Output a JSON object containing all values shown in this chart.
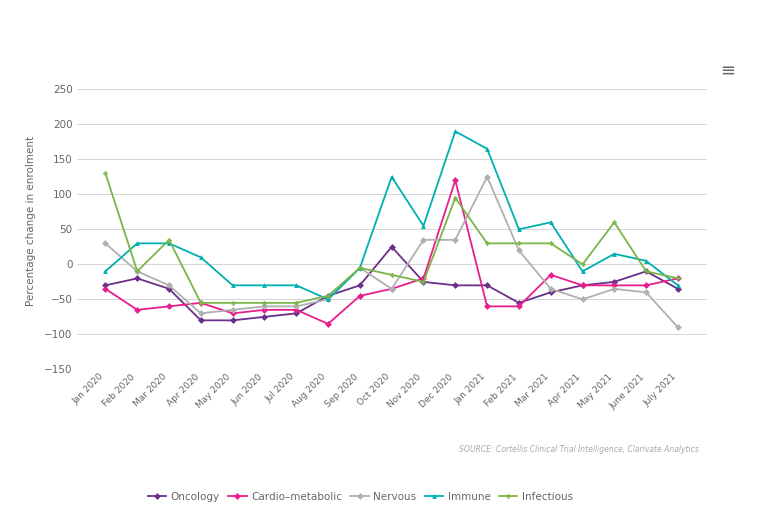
{
  "months": [
    "Jan 2020",
    "Feb 2020",
    "Mar 2020",
    "Apr 2020",
    "May 2020",
    "Jun 2020",
    "Jul 2020",
    "Aug 2020",
    "Sep 2020",
    "Oct 2020",
    "Nov 2020",
    "Dec 2020",
    "Jan 2021",
    "Feb 2021",
    "Mar 2021",
    "Apr 2021",
    "May 2021",
    "June 2021",
    "July 2021"
  ],
  "oncology": [
    -30,
    -20,
    -35,
    -80,
    -80,
    -75,
    -70,
    -45,
    -30,
    25,
    -25,
    -30,
    -30,
    -55,
    -40,
    -30,
    -25,
    -10,
    -35
  ],
  "cardio": [
    -35,
    -65,
    -60,
    -55,
    -70,
    -65,
    -65,
    -85,
    -45,
    -35,
    -20,
    120,
    -60,
    -60,
    -15,
    -30,
    -30,
    -30,
    -20
  ],
  "nervous": [
    30,
    -10,
    -30,
    -70,
    -65,
    -60,
    -60,
    -50,
    -5,
    -35,
    35,
    35,
    125,
    20,
    -35,
    -50,
    -35,
    -40,
    -90
  ],
  "immune": [
    -10,
    30,
    30,
    10,
    -30,
    -30,
    -30,
    -50,
    -5,
    125,
    55,
    190,
    165,
    50,
    60,
    -10,
    15,
    5,
    -30
  ],
  "infectious": [
    130,
    -10,
    35,
    -55,
    -55,
    -55,
    -55,
    -45,
    -5,
    -15,
    -25,
    95,
    30,
    30,
    30,
    0,
    60,
    -10,
    -20
  ],
  "colors": {
    "oncology": "#6a2f8a",
    "cardio": "#e91e8c",
    "nervous": "#b0b0b0",
    "immune": "#00b0b0",
    "infectious": "#7ab648"
  },
  "ylim": [
    -150,
    275
  ],
  "yticks": [
    -150,
    -100,
    -50,
    0,
    50,
    100,
    150,
    200,
    250
  ],
  "ylabel": "Percentage change in enrolment",
  "source": "SOURCE: Cortellis Clinical Trial Intelligence, Clarivate Analytics",
  "grid_color": "#d5d5d5",
  "hamburger_color": "#666666",
  "text_color": "#666666"
}
